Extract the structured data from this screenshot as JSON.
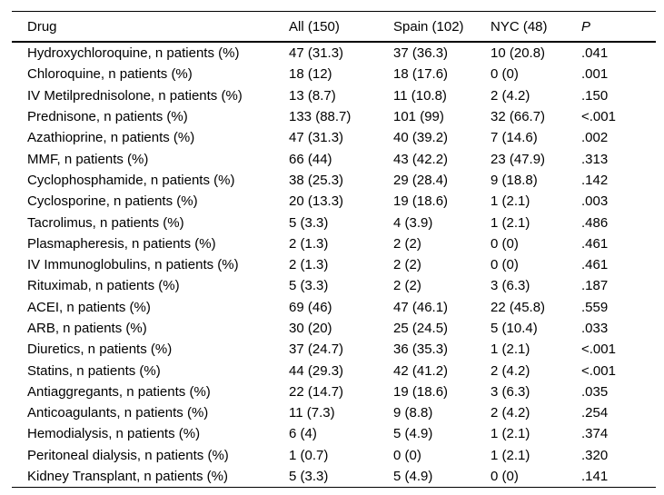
{
  "colors": {
    "text": "#000000",
    "rule": "#000000",
    "background": "#ffffff"
  },
  "table": {
    "columns": [
      {
        "label": "Drug"
      },
      {
        "label": "All (150)"
      },
      {
        "label": "Spain (102)"
      },
      {
        "label": "NYC (48)"
      },
      {
        "label": "P"
      }
    ],
    "rows": [
      {
        "drug": "Hydroxychloroquine, n patients (%)",
        "all": "47 (31.3)",
        "spain": "37 (36.3)",
        "nyc": "10 (20.8)",
        "p": ".041"
      },
      {
        "drug": "Chloroquine, n patients (%)",
        "all": "18 (12)",
        "spain": "18 (17.6)",
        "nyc": "0 (0)",
        "p": ".001"
      },
      {
        "drug": "IV Metilprednisolone, n patients (%)",
        "all": "13 (8.7)",
        "spain": "11 (10.8)",
        "nyc": "2 (4.2)",
        "p": ".150"
      },
      {
        "drug": "Prednisone, n patients (%)",
        "all": "133 (88.7)",
        "spain": "101 (99)",
        "nyc": "32 (66.7)",
        "p": "<.001"
      },
      {
        "drug": "Azathioprine, n patients (%)",
        "all": "47 (31.3)",
        "spain": "40 (39.2)",
        "nyc": "7 (14.6)",
        "p": ".002"
      },
      {
        "drug": "MMF, n patients (%)",
        "all": "66 (44)",
        "spain": "43 (42.2)",
        "nyc": "23 (47.9)",
        "p": ".313"
      },
      {
        "drug": "Cyclophosphamide, n patients (%)",
        "all": "38 (25.3)",
        "spain": "29 (28.4)",
        "nyc": "9 (18.8)",
        "p": ".142"
      },
      {
        "drug": "Cyclosporine, n patients (%)",
        "all": "20 (13.3)",
        "spain": "19 (18.6)",
        "nyc": "1 (2.1)",
        "p": ".003"
      },
      {
        "drug": "Tacrolimus, n patients (%)",
        "all": "5 (3.3)",
        "spain": "4 (3.9)",
        "nyc": "1 (2.1)",
        "p": ".486"
      },
      {
        "drug": "Plasmapheresis, n patients (%)",
        "all": "2 (1.3)",
        "spain": "2 (2)",
        "nyc": "0 (0)",
        "p": ".461"
      },
      {
        "drug": "IV Immunoglobulins, n patients (%)",
        "all": "2 (1.3)",
        "spain": "2 (2)",
        "nyc": "0 (0)",
        "p": ".461"
      },
      {
        "drug": "Rituximab, n patients (%)",
        "all": "5 (3.3)",
        "spain": "2 (2)",
        "nyc": "3 (6.3)",
        "p": ".187"
      },
      {
        "drug": "ACEI, n patients (%)",
        "all": "69 (46)",
        "spain": "47 (46.1)",
        "nyc": "22 (45.8)",
        "p": ".559"
      },
      {
        "drug": "ARB, n patients (%)",
        "all": "30 (20)",
        "spain": "25 (24.5)",
        "nyc": "5 (10.4)",
        "p": ".033"
      },
      {
        "drug": "Diuretics, n patients (%)",
        "all": "37 (24.7)",
        "spain": "36 (35.3)",
        "nyc": "1 (2.1)",
        "p": "<.001"
      },
      {
        "drug": "Statins, n patients (%)",
        "all": "44 (29.3)",
        "spain": "42 (41.2)",
        "nyc": "2 (4.2)",
        "p": "<.001"
      },
      {
        "drug": "Antiaggregants, n patients (%)",
        "all": "22 (14.7)",
        "spain": "19 (18.6)",
        "nyc": "3 (6.3)",
        "p": ".035"
      },
      {
        "drug": "Anticoagulants, n patients (%)",
        "all": "11 (7.3)",
        "spain": "9 (8.8)",
        "nyc": "2 (4.2)",
        "p": ".254"
      },
      {
        "drug": "Hemodialysis, n patients (%)",
        "all": "6 (4)",
        "spain": "5 (4.9)",
        "nyc": "1 (2.1)",
        "p": ".374"
      },
      {
        "drug": "Peritoneal dialysis, n patients (%)",
        "all": "1 (0.7)",
        "spain": "0 (0)",
        "nyc": "1 (2.1)",
        "p": ".320"
      },
      {
        "drug": "Kidney Transplant, n patients (%)",
        "all": "5 (3.3)",
        "spain": "5 (4.9)",
        "nyc": "0 (0)",
        "p": ".141"
      }
    ]
  }
}
